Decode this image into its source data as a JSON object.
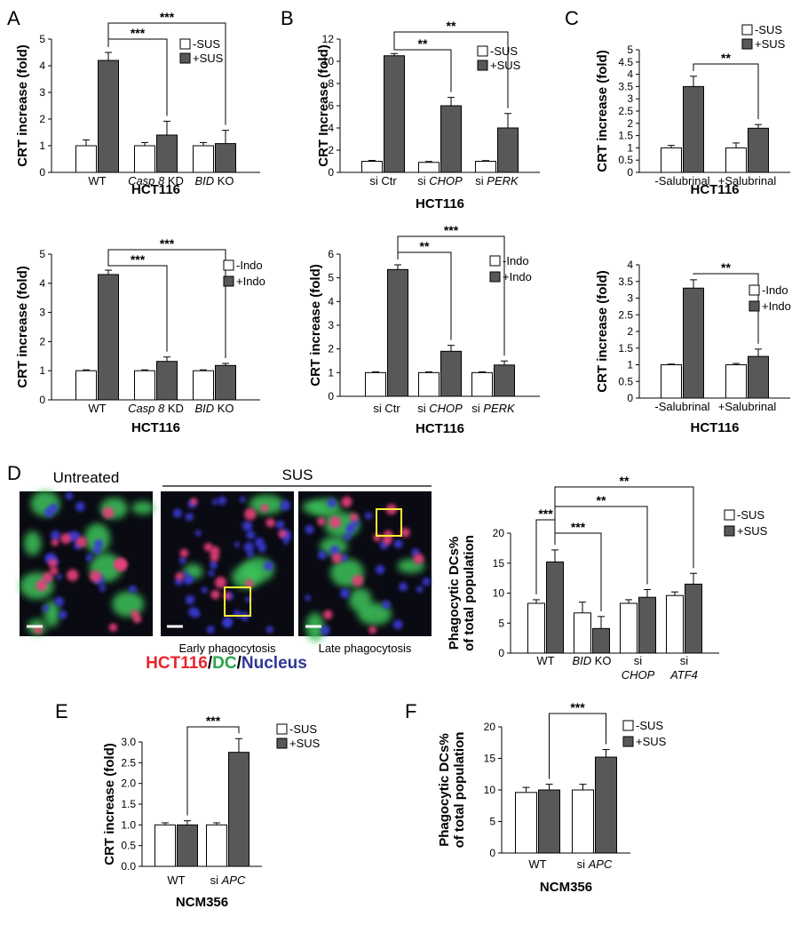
{
  "colors": {
    "minus": "#ffffff",
    "plus": "#585858",
    "outline": "#000000",
    "red": "#e8262b",
    "green": "#2aa44a",
    "blue": "#2f3694",
    "highlight_box": "#ffee33"
  },
  "panel_labels": [
    "A",
    "B",
    "C",
    "D",
    "E",
    "F"
  ],
  "panel_d": {
    "untreated_label": "Untreated",
    "sus_label": "SUS",
    "early_label": "Early phagocytosis",
    "late_label": "Late phagocytosis",
    "stain_legend": [
      {
        "text": "HCT116",
        "color": "#e8262b"
      },
      {
        "text": "/",
        "color": "#000000"
      },
      {
        "text": "DC",
        "color": "#2aa44a"
      },
      {
        "text": "/",
        "color": "#000000"
      },
      {
        "text": "Nucleus",
        "color": "#2f3694"
      }
    ]
  },
  "chart_data": [
    {
      "id": "A-top",
      "type": "bar",
      "ylabel": "CRT increase (fold)",
      "cell_line": "HCT116",
      "ylim": [
        0,
        5
      ],
      "yticks": [
        0,
        1,
        2,
        3,
        4,
        5
      ],
      "ytick_labels": [
        "0",
        "1",
        "2",
        "3",
        "4",
        "5"
      ],
      "categories": [
        {
          "parts": [
            "WT"
          ]
        },
        {
          "parts": [
            "Casp 8",
            " KD"
          ],
          "italic": [
            true,
            false
          ]
        },
        {
          "parts": [
            "BID",
            " KO"
          ],
          "italic": [
            true,
            false
          ]
        }
      ],
      "series": [
        {
          "name": "-SUS",
          "values": [
            1.0,
            1.0,
            1.0
          ],
          "errors": [
            0.22,
            0.12,
            0.12
          ]
        },
        {
          "name": "+SUS",
          "values": [
            4.2,
            1.4,
            1.08
          ],
          "errors": [
            0.3,
            0.52,
            0.5
          ]
        }
      ],
      "significance": [
        {
          "from": [
            0,
            1
          ],
          "to": [
            1,
            1
          ],
          "label": "***"
        },
        {
          "from": [
            0,
            1
          ],
          "to": [
            2,
            1
          ],
          "label": "***"
        }
      ]
    },
    {
      "id": "B-top",
      "type": "bar",
      "ylabel": "CRT Increase (fold)",
      "cell_line": "HCT116",
      "ylim": [
        0,
        12
      ],
      "yticks": [
        0,
        2,
        4,
        6,
        8,
        10,
        12
      ],
      "ytick_labels": [
        "0",
        "2",
        "4",
        "6",
        "8",
        "10",
        "12"
      ],
      "categories": [
        {
          "parts": [
            "si Ctr"
          ]
        },
        {
          "parts": [
            "si ",
            "CHOP"
          ],
          "italic": [
            false,
            true
          ]
        },
        {
          "parts": [
            "si ",
            "PERK"
          ],
          "italic": [
            false,
            true
          ]
        }
      ],
      "series": [
        {
          "name": "-SUS",
          "values": [
            1.0,
            0.9,
            1.0
          ],
          "errors": [
            0.08,
            0.08,
            0.06
          ]
        },
        {
          "name": "+SUS",
          "values": [
            10.5,
            6.0,
            4.0
          ],
          "errors": [
            0.2,
            0.75,
            1.3
          ]
        }
      ],
      "significance": [
        {
          "from": [
            0,
            1
          ],
          "to": [
            1,
            1
          ],
          "label": "**"
        },
        {
          "from": [
            0,
            1
          ],
          "to": [
            2,
            1
          ],
          "label": "**"
        }
      ]
    },
    {
      "id": "C-top",
      "type": "bar",
      "ylabel": "CRT increase (fold)",
      "cell_line": "HCT116",
      "ylim": [
        0,
        5
      ],
      "yticks": [
        0,
        0.5,
        1,
        1.5,
        2,
        2.5,
        3,
        3.5,
        4,
        4.5,
        5
      ],
      "ytick_labels": [
        "0",
        "0.5",
        "1",
        "1.5",
        "2",
        "2.5",
        "3",
        "3.5",
        "4",
        "4.5",
        "5"
      ],
      "categories": [
        {
          "parts": [
            "-Salubrinal"
          ]
        },
        {
          "parts": [
            "+Salubrinal"
          ]
        }
      ],
      "series": [
        {
          "name": "-SUS",
          "values": [
            1.0,
            1.0
          ],
          "errors": [
            0.1,
            0.2
          ]
        },
        {
          "name": "+SUS",
          "values": [
            3.5,
            1.8
          ],
          "errors": [
            0.42,
            0.15
          ]
        }
      ],
      "significance": [
        {
          "from": [
            0,
            1
          ],
          "to": [
            1,
            1
          ],
          "label": "**"
        }
      ]
    },
    {
      "id": "A-bottom",
      "type": "bar",
      "ylabel": "CRT increase (fold)",
      "cell_line": "HCT116",
      "ylim": [
        0,
        5
      ],
      "yticks": [
        0,
        1,
        2,
        3,
        4,
        5
      ],
      "ytick_labels": [
        "0",
        "1",
        "2",
        "3",
        "4",
        "5"
      ],
      "categories": [
        {
          "parts": [
            "WT"
          ]
        },
        {
          "parts": [
            "Casp 8",
            " KD"
          ],
          "italic": [
            true,
            false
          ]
        },
        {
          "parts": [
            "BID",
            " KO"
          ],
          "italic": [
            true,
            false
          ]
        }
      ],
      "series": [
        {
          "name": "-Indo",
          "values": [
            1.0,
            1.0,
            1.0
          ],
          "errors": [
            0.03,
            0.03,
            0.03
          ]
        },
        {
          "name": "+Indo",
          "values": [
            4.3,
            1.32,
            1.18
          ],
          "errors": [
            0.15,
            0.15,
            0.07
          ]
        }
      ],
      "significance": [
        {
          "from": [
            0,
            1
          ],
          "to": [
            1,
            1
          ],
          "label": "***"
        },
        {
          "from": [
            0,
            1
          ],
          "to": [
            2,
            1
          ],
          "label": "***"
        }
      ]
    },
    {
      "id": "B-bottom",
      "type": "bar",
      "ylabel": "CRT increase (fold)",
      "cell_line": "HCT116",
      "ylim": [
        0,
        6
      ],
      "yticks": [
        0,
        1,
        2,
        3,
        4,
        5,
        6
      ],
      "ytick_labels": [
        "0",
        "1",
        "2",
        "3",
        "4",
        "5",
        "6"
      ],
      "categories": [
        {
          "parts": [
            "si Ctr"
          ]
        },
        {
          "parts": [
            "si ",
            "CHOP"
          ],
          "italic": [
            false,
            true
          ]
        },
        {
          "parts": [
            "si ",
            "PERK"
          ],
          "italic": [
            false,
            true
          ]
        }
      ],
      "series": [
        {
          "name": "-Indo",
          "values": [
            1.0,
            1.0,
            1.0
          ],
          "errors": [
            0.03,
            0.03,
            0.03
          ]
        },
        {
          "name": "+Indo",
          "values": [
            5.35,
            1.9,
            1.32
          ],
          "errors": [
            0.2,
            0.25,
            0.17
          ]
        }
      ],
      "significance": [
        {
          "from": [
            0,
            1
          ],
          "to": [
            1,
            1
          ],
          "label": "**"
        },
        {
          "from": [
            0,
            1
          ],
          "to": [
            2,
            1
          ],
          "label": "***"
        }
      ]
    },
    {
      "id": "C-bottom",
      "type": "bar",
      "ylabel": "CRT increase (fold)",
      "cell_line": "HCT116",
      "ylim": [
        0,
        4
      ],
      "yticks": [
        0,
        0.5,
        1,
        1.5,
        2,
        2.5,
        3,
        3.5,
        4
      ],
      "ytick_labels": [
        "0",
        "0.5",
        "1",
        "1.5",
        "2",
        "2.5",
        "3",
        "3.5",
        "4"
      ],
      "categories": [
        {
          "parts": [
            "-Salubrinal"
          ]
        },
        {
          "parts": [
            "+Salubrinal"
          ]
        }
      ],
      "series": [
        {
          "name": "-Indo",
          "values": [
            1.0,
            1.0
          ],
          "errors": [
            0.02,
            0.04
          ]
        },
        {
          "name": "+Indo",
          "values": [
            3.3,
            1.25
          ],
          "errors": [
            0.25,
            0.22
          ]
        }
      ],
      "significance": [
        {
          "from": [
            0,
            1
          ],
          "to": [
            1,
            1
          ],
          "label": "**"
        }
      ]
    },
    {
      "id": "D",
      "type": "bar",
      "ylabel": "Phagocytic DCs%",
      "ylabel2": "of total population",
      "cell_line": "",
      "ylim": [
        0,
        20
      ],
      "yticks": [
        0,
        5,
        10,
        15,
        20
      ],
      "ytick_labels": [
        "0",
        "5",
        "10",
        "15",
        "20"
      ],
      "categories": [
        {
          "parts": [
            "WT"
          ]
        },
        {
          "parts": [
            "BID",
            " KO"
          ],
          "italic": [
            true,
            false
          ]
        },
        {
          "parts": [
            "si"
          ],
          "parts2": [
            "CHOP"
          ],
          "italic2": [
            true
          ]
        },
        {
          "parts": [
            "si"
          ],
          "parts2": [
            "ATF4"
          ],
          "italic2": [
            true
          ]
        }
      ],
      "series": [
        {
          "name": "-SUS",
          "values": [
            8.3,
            6.7,
            8.3,
            9.6
          ],
          "errors": [
            0.6,
            1.8,
            0.6,
            0.6
          ]
        },
        {
          "name": "+SUS",
          "values": [
            15.2,
            4.1,
            9.3,
            11.5
          ],
          "errors": [
            2.0,
            2.0,
            1.3,
            1.8
          ]
        }
      ],
      "significance": [
        {
          "from": [
            0,
            0
          ],
          "to": [
            0,
            1
          ],
          "label": "***"
        },
        {
          "from": [
            0,
            1
          ],
          "to": [
            1,
            1
          ],
          "label": "***"
        },
        {
          "from": [
            0,
            1
          ],
          "to": [
            2,
            1
          ],
          "label": "**"
        },
        {
          "from": [
            0,
            1
          ],
          "to": [
            3,
            1
          ],
          "label": "**"
        }
      ]
    },
    {
      "id": "E",
      "type": "bar",
      "ylabel": "CRT increase (fold)",
      "cell_line": "NCM356",
      "ylim": [
        0,
        3
      ],
      "yticks": [
        0,
        0.5,
        1,
        1.5,
        2,
        2.5,
        3
      ],
      "ytick_labels": [
        "0.0",
        "0.5",
        "1.0",
        "1.5",
        "2.0",
        "2.5",
        "3.0"
      ],
      "categories": [
        {
          "parts": [
            "WT"
          ]
        },
        {
          "parts": [
            "si ",
            "APC"
          ],
          "italic": [
            false,
            true
          ]
        }
      ],
      "series": [
        {
          "name": "-SUS",
          "values": [
            1.0,
            1.0
          ],
          "errors": [
            0.05,
            0.05
          ]
        },
        {
          "name": "+SUS",
          "values": [
            1.0,
            2.75
          ],
          "errors": [
            0.1,
            0.33
          ]
        }
      ],
      "significance": [
        {
          "from": [
            0,
            1
          ],
          "to": [
            1,
            1
          ],
          "label": "***"
        }
      ]
    },
    {
      "id": "F",
      "type": "bar",
      "ylabel": "Phagocytic DCs%",
      "ylabel2": "of total population",
      "cell_line": "NCM356",
      "ylim": [
        0,
        20
      ],
      "yticks": [
        0,
        5,
        10,
        15,
        20
      ],
      "ytick_labels": [
        "0",
        "5",
        "10",
        "15",
        "20"
      ],
      "categories": [
        {
          "parts": [
            "WT"
          ]
        },
        {
          "parts": [
            "si ",
            "APC"
          ],
          "italic": [
            false,
            true
          ]
        }
      ],
      "series": [
        {
          "name": "-SUS",
          "values": [
            9.6,
            10.0
          ],
          "errors": [
            0.8,
            0.9
          ]
        },
        {
          "name": "+SUS",
          "values": [
            10.0,
            15.2
          ],
          "errors": [
            0.9,
            1.2
          ]
        }
      ],
      "significance": [
        {
          "from": [
            0,
            1
          ],
          "to": [
            1,
            1
          ],
          "label": "***"
        }
      ]
    }
  ]
}
